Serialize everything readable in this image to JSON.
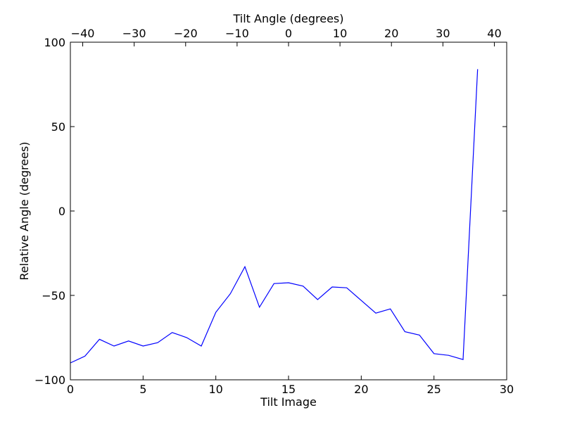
{
  "chart_data": {
    "type": "line",
    "title": "",
    "xlabel": "Tilt Image",
    "ylabel": "Relative Angle (degrees)",
    "top_xlabel": "Tilt Angle (degrees)",
    "xlim": [
      0,
      30
    ],
    "ylim": [
      -100,
      100
    ],
    "top_xlim": [
      -42.4,
      42.4
    ],
    "x_ticks": [
      0,
      5,
      10,
      15,
      20,
      25,
      30
    ],
    "x_tick_labels": [
      "0",
      "5",
      "10",
      "15",
      "20",
      "25",
      "30"
    ],
    "y_ticks": [
      -100,
      -50,
      0,
      50,
      100
    ],
    "y_tick_labels": [
      "−100",
      "−50",
      "0",
      "50",
      "100"
    ],
    "top_x_ticks": [
      -40,
      -30,
      -20,
      -10,
      0,
      10,
      20,
      30,
      40
    ],
    "top_x_tick_labels": [
      "−40",
      "−30",
      "−20",
      "−10",
      "0",
      "10",
      "20",
      "30",
      "40"
    ],
    "grid": false,
    "legend": "none",
    "series": [
      {
        "color": "#0000ff",
        "x": [
          0,
          1,
          2,
          3,
          4,
          5,
          6,
          7,
          8,
          9,
          10,
          11,
          12,
          13,
          14,
          15,
          16,
          17,
          18,
          19,
          20,
          21,
          22,
          23,
          24,
          25,
          26,
          27,
          28
        ],
        "y": [
          -90,
          -86,
          -76,
          -80,
          -77,
          -80,
          -78,
          -72,
          -75,
          -80,
          -60,
          -49,
          -33,
          -57,
          -43,
          -42.5,
          -44.5,
          -52.5,
          -45,
          -45.5,
          -53,
          -60.5,
          -58,
          -71.5,
          -73.5,
          -84.5,
          -85.5,
          -88,
          84
        ]
      }
    ]
  }
}
